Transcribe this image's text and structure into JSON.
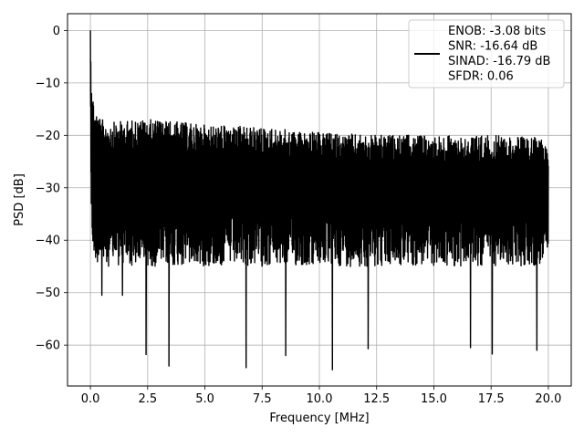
{
  "chart_data": {
    "type": "line",
    "title": "",
    "xlabel": "Frequency [MHz]",
    "ylabel": "PSD [dB]",
    "xlim": [
      -1.0,
      21.0
    ],
    "ylim": [
      -67.8,
      3.2
    ],
    "xticks": [
      0.0,
      2.5,
      5.0,
      7.5,
      10.0,
      12.5,
      15.0,
      17.5,
      20.0
    ],
    "xtick_labels": [
      "0.0",
      "2.5",
      "5.0",
      "7.5",
      "10.0",
      "12.5",
      "15.0",
      "17.5",
      "20.0"
    ],
    "yticks": [
      0,
      -10,
      -20,
      -30,
      -40,
      -50,
      -60
    ],
    "ytick_labels": [
      "0",
      "−10",
      "−20",
      "−30",
      "−40",
      "−50",
      "−60"
    ],
    "grid": true,
    "legend_position": "top-right",
    "series": [
      {
        "name": "ENOB: -3.08 bits\nSNR: -16.64 dB\nSINAD: -16.79 dB\nSFDR: 0.06",
        "color": "#000000",
        "x_range": [
          0.0,
          20.0
        ],
        "envelope_x": [
          0.0,
          0.02,
          0.05,
          0.1,
          0.2,
          0.5,
          1.0,
          2.0,
          3.0,
          5.0,
          7.5,
          10.0,
          12.5,
          15.0,
          17.5,
          20.0
        ],
        "envelope_upper": [
          0.0,
          -5.0,
          -8.0,
          -12.0,
          -15.0,
          -17.0,
          -17.5,
          -17.0,
          -17.0,
          -18.0,
          -18.5,
          -19.5,
          -20.0,
          -20.0,
          -20.0,
          -20.5
        ],
        "envelope_lower": [
          -8.0,
          -27.0,
          -37.0,
          -40.0,
          -42.0,
          -43.0,
          -43.0,
          -43.0,
          -43.0,
          -43.0,
          -43.0,
          -43.0,
          -43.0,
          -43.0,
          -43.0,
          -43.0
        ],
        "notable_dips": [
          {
            "x": 0.5,
            "y": -50.5
          },
          {
            "x": 1.4,
            "y": -50.5
          },
          {
            "x": 2.43,
            "y": -61.8
          },
          {
            "x": 3.43,
            "y": -64.0
          },
          {
            "x": 6.8,
            "y": -64.3
          },
          {
            "x": 8.53,
            "y": -62.0
          },
          {
            "x": 10.57,
            "y": -64.7
          },
          {
            "x": 12.13,
            "y": -60.7
          },
          {
            "x": 16.6,
            "y": -60.5
          },
          {
            "x": 17.55,
            "y": -61.7
          },
          {
            "x": 19.5,
            "y": -61.0
          }
        ]
      }
    ]
  }
}
